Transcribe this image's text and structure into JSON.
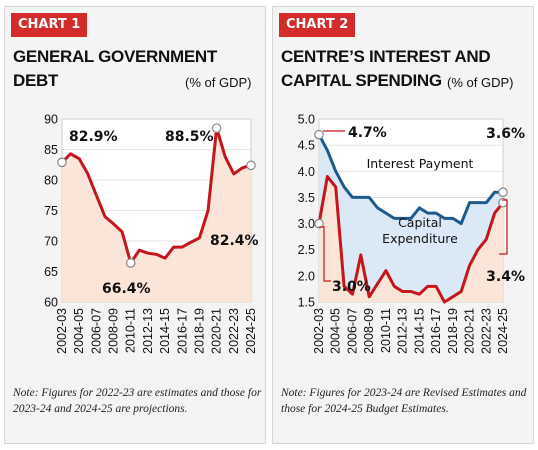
{
  "colors": {
    "red": "#c4161c",
    "blue": "#1f5a8c",
    "fill_red": "#fbe4d8",
    "fill_blue": "#dbe9f6",
    "badge": "#d42b2b"
  },
  "chart_data": [
    {
      "type": "line",
      "badge": "CHART 1",
      "title_line1": "GENERAL GOVERNMENT",
      "title_line2": "DEBT",
      "unit": "(% of GDP)",
      "ylim": [
        60,
        90
      ],
      "yticks": [
        60,
        65,
        70,
        75,
        80,
        85,
        90
      ],
      "x": [
        "2002-03",
        "2003-04",
        "2004-05",
        "2005-06",
        "2006-07",
        "2007-08",
        "2008-09",
        "2009-10",
        "2010-11",
        "2011-12",
        "2012-13",
        "2013-14",
        "2014-15",
        "2015-16",
        "2016-17",
        "2017-18",
        "2018-19",
        "2019-20",
        "2020-21",
        "2021-22",
        "2022-23",
        "2023-24",
        "2024-25"
      ],
      "xtick_labels": [
        "2002-03",
        "2004-05",
        "2006-07",
        "2008-09",
        "2010-11",
        "2012-13",
        "2014-15",
        "2016-17",
        "2018-19",
        "2020-21",
        "2022-23",
        "2024-25"
      ],
      "series": [
        {
          "values": [
            82.9,
            84.3,
            83.5,
            81.0,
            77.5,
            74.0,
            72.8,
            71.5,
            66.4,
            68.5,
            68.0,
            67.8,
            67.2,
            69.0,
            69.0,
            69.8,
            70.5,
            75.0,
            88.5,
            83.8,
            81.0,
            82.0,
            82.4
          ]
        }
      ],
      "annotations": [
        "82.9%",
        "88.5%",
        "66.4%",
        "82.4%"
      ],
      "note": "Note: Figures for 2022-23 are estimates and those for 2023-24 and 2024-25 are projections."
    },
    {
      "type": "line",
      "badge": "CHART 2",
      "title_line1": "CENTRE’S INTEREST AND",
      "title_line2": "CAPITAL SPENDING",
      "unit": "(% of GDP)",
      "ylim": [
        1.5,
        5.0
      ],
      "yticks": [
        1.5,
        2.0,
        2.5,
        3.0,
        3.5,
        4.0,
        4.5,
        5.0
      ],
      "x": [
        "2002-03",
        "2003-04",
        "2004-05",
        "2005-06",
        "2006-07",
        "2007-08",
        "2008-09",
        "2009-10",
        "2010-11",
        "2011-12",
        "2012-13",
        "2013-14",
        "2014-15",
        "2015-16",
        "2016-17",
        "2017-18",
        "2018-19",
        "2019-20",
        "2020-21",
        "2021-22",
        "2022-23",
        "2023-24",
        "2024-25"
      ],
      "xtick_labels": [
        "2002-03",
        "2004-05",
        "2006-07",
        "2008-09",
        "2010-11",
        "2012-13",
        "2014-15",
        "2016-17",
        "2018-19",
        "2020-21",
        "2022-23",
        "2024-25"
      ],
      "series": [
        {
          "name": "Interest Payment",
          "values": [
            4.7,
            4.4,
            4.0,
            3.7,
            3.5,
            3.5,
            3.5,
            3.3,
            3.2,
            3.1,
            3.1,
            3.1,
            3.3,
            3.2,
            3.2,
            3.1,
            3.1,
            3.0,
            3.4,
            3.4,
            3.4,
            3.6,
            3.6
          ]
        },
        {
          "name": "Capital Expenditure",
          "values": [
            3.0,
            3.9,
            3.7,
            1.8,
            1.65,
            2.4,
            1.6,
            1.85,
            2.1,
            1.8,
            1.7,
            1.7,
            1.65,
            1.8,
            1.8,
            1.5,
            1.6,
            1.7,
            2.2,
            2.5,
            2.7,
            3.2,
            3.4
          ]
        }
      ],
      "annotations": [
        "4.7%",
        "3.0%",
        "3.6%",
        "3.4%"
      ],
      "note": "Note: Figures for 2023-24 are Revised Estimates and those for 2024-25 Budget Estimates."
    }
  ]
}
